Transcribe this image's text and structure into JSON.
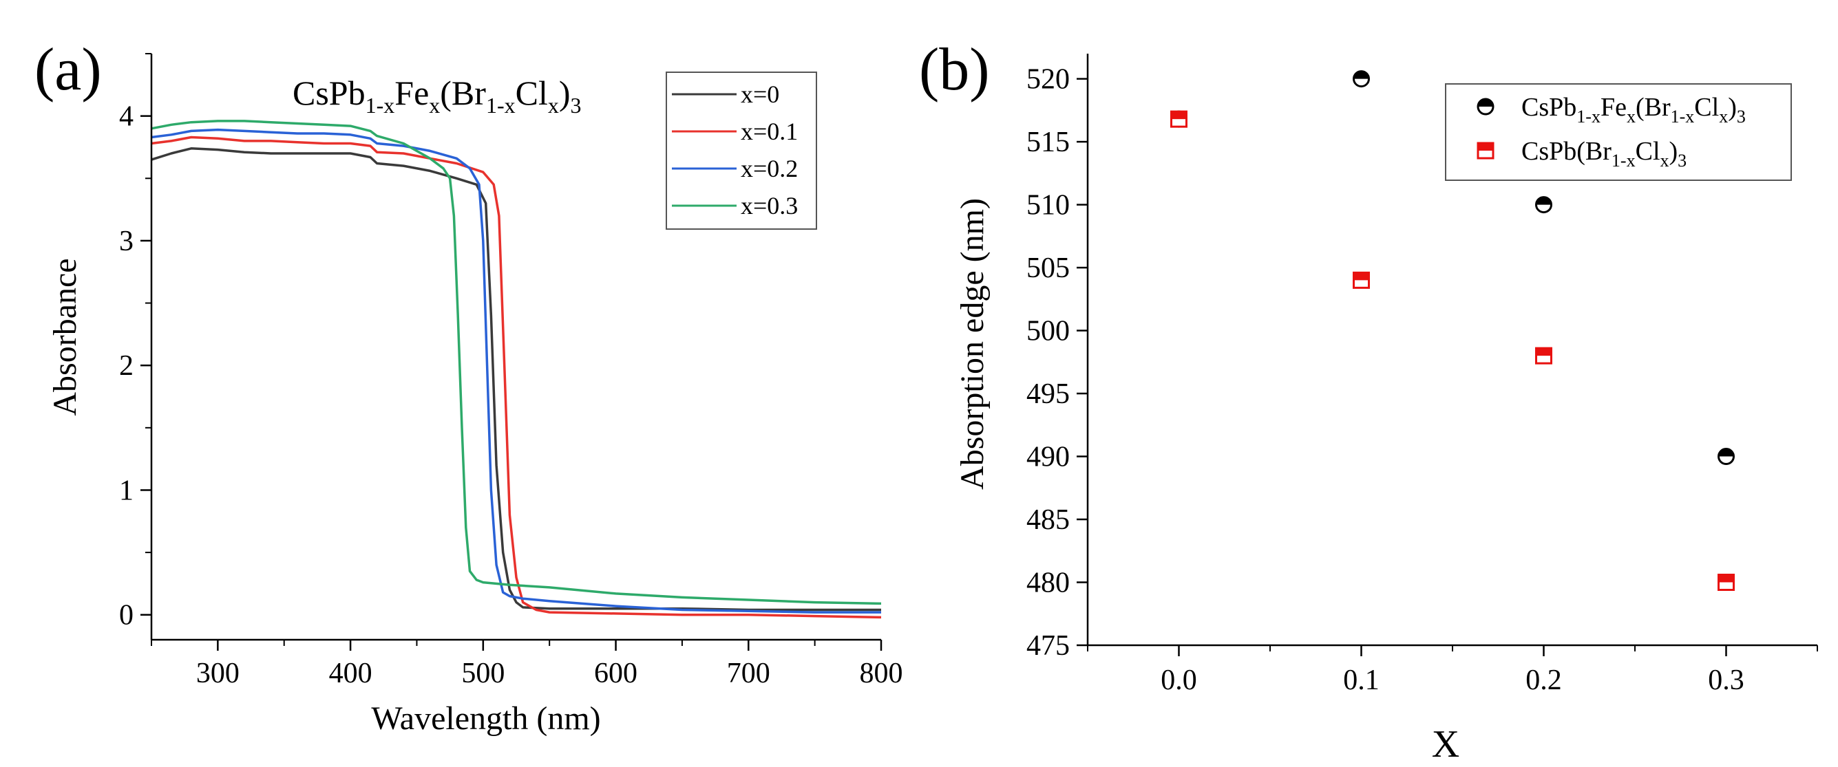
{
  "chart_data": [
    {
      "panel": "(a)",
      "type": "line",
      "title": "CsPb1-xFex(Br1-xClx)3",
      "title_parts": {
        "a": "CsPb",
        "b": "1-x",
        "c": "Fe",
        "d": "x",
        "e": "(Br",
        "f": "1-x",
        "g": "Cl",
        "h": "x",
        "i": ")",
        "j": "3"
      },
      "xlabel": "Wavelength (nm)",
      "ylabel": "Absorbance",
      "xlim": [
        250,
        800
      ],
      "ylim": [
        -0.2,
        4.5
      ],
      "xticks": [
        300,
        400,
        500,
        600,
        700,
        800
      ],
      "yticks": [
        0,
        1,
        2,
        3,
        4
      ],
      "legend_position": "top-right",
      "series": [
        {
          "name": "x=0",
          "color": "#3a3a3a",
          "x": [
            250,
            265,
            280,
            300,
            320,
            340,
            360,
            380,
            400,
            415,
            420,
            440,
            460,
            480,
            495,
            502,
            506,
            510,
            515,
            520,
            525,
            530,
            550,
            600,
            650,
            700,
            750,
            800
          ],
          "y": [
            3.65,
            3.7,
            3.74,
            3.73,
            3.71,
            3.7,
            3.7,
            3.7,
            3.7,
            3.67,
            3.62,
            3.6,
            3.56,
            3.5,
            3.45,
            3.3,
            2.4,
            1.2,
            0.5,
            0.2,
            0.1,
            0.06,
            0.05,
            0.05,
            0.05,
            0.04,
            0.04,
            0.04
          ]
        },
        {
          "name": "x=0.1",
          "color": "#e8322d",
          "x": [
            250,
            265,
            280,
            300,
            320,
            340,
            360,
            380,
            400,
            415,
            420,
            440,
            460,
            480,
            500,
            508,
            512,
            516,
            520,
            525,
            530,
            540,
            550,
            600,
            650,
            700,
            750,
            800
          ],
          "y": [
            3.78,
            3.8,
            3.83,
            3.82,
            3.8,
            3.8,
            3.79,
            3.78,
            3.78,
            3.76,
            3.71,
            3.7,
            3.66,
            3.62,
            3.55,
            3.45,
            3.2,
            2.0,
            0.8,
            0.3,
            0.1,
            0.04,
            0.02,
            0.01,
            0.0,
            0.0,
            -0.01,
            -0.02
          ]
        },
        {
          "name": "x=0.2",
          "color": "#2a62d6",
          "x": [
            250,
            265,
            280,
            300,
            320,
            340,
            360,
            380,
            400,
            415,
            420,
            440,
            460,
            480,
            490,
            497,
            500,
            503,
            506,
            510,
            515,
            520,
            530,
            550,
            600,
            650,
            700,
            750,
            800
          ],
          "y": [
            3.83,
            3.85,
            3.88,
            3.89,
            3.88,
            3.87,
            3.86,
            3.86,
            3.85,
            3.82,
            3.78,
            3.76,
            3.72,
            3.66,
            3.58,
            3.45,
            3.0,
            2.0,
            1.0,
            0.4,
            0.18,
            0.15,
            0.13,
            0.11,
            0.07,
            0.04,
            0.03,
            0.02,
            0.02
          ]
        },
        {
          "name": "x=0.3",
          "color": "#2eaa6a",
          "x": [
            250,
            265,
            280,
            300,
            320,
            340,
            360,
            380,
            400,
            415,
            420,
            440,
            460,
            470,
            475,
            478,
            481,
            484,
            487,
            490,
            495,
            500,
            520,
            550,
            600,
            650,
            700,
            750,
            800
          ],
          "y": [
            3.9,
            3.93,
            3.95,
            3.96,
            3.96,
            3.95,
            3.94,
            3.93,
            3.92,
            3.88,
            3.84,
            3.78,
            3.66,
            3.58,
            3.5,
            3.2,
            2.4,
            1.5,
            0.7,
            0.35,
            0.28,
            0.26,
            0.24,
            0.22,
            0.17,
            0.14,
            0.12,
            0.1,
            0.09
          ]
        }
      ]
    },
    {
      "panel": "(b)",
      "type": "scatter",
      "xlabel": "X",
      "ylabel": "Absorption edge (nm)",
      "xlim": [
        -0.05,
        0.35
      ],
      "ylim": [
        475,
        522
      ],
      "xticks": [
        "0.0",
        "0.1",
        "0.2",
        "0.3"
      ],
      "yticks": [
        475,
        480,
        485,
        490,
        495,
        500,
        505,
        510,
        515,
        520
      ],
      "legend_position": "top-right",
      "series": [
        {
          "name": "CsPb1-xFex(Br1-xClx)3",
          "marker": "half-filled-circle",
          "color": "#000000",
          "legend_parts": {
            "a": "CsPb",
            "b": "1-x",
            "c": "Fe",
            "d": "x",
            "e": "(Br",
            "f": "1-x",
            "g": "Cl",
            "h": "x",
            "i": ")",
            "j": "3"
          },
          "x": [
            0.0,
            0.1,
            0.2,
            0.3
          ],
          "y": [
            516.8,
            520,
            510,
            490
          ]
        },
        {
          "name": "CsPb(Br1-xClx)3",
          "marker": "half-filled-square",
          "color": "#e8110f",
          "legend_parts": {
            "a": "CsPb(Br",
            "b": "1-x",
            "c": "Cl",
            "d": "x",
            "e": ")",
            "f": "3"
          },
          "x": [
            0.0,
            0.1,
            0.2,
            0.3
          ],
          "y": [
            516.8,
            504,
            498,
            480
          ]
        }
      ]
    }
  ]
}
